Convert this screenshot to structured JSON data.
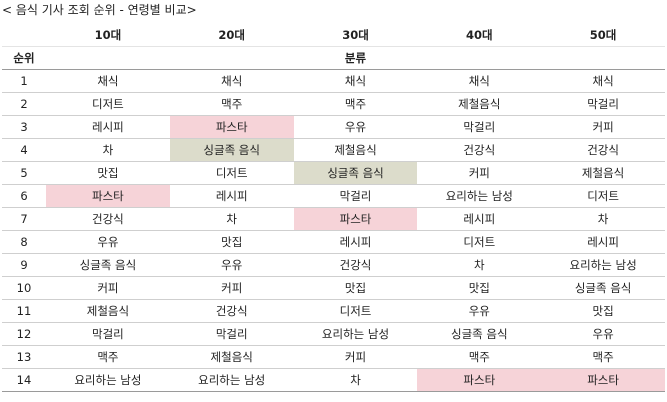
{
  "title": "< 음식 기사 조회 순위 - 연령별 비교>",
  "chart_data": {
    "type": "table",
    "rank_header": "순위",
    "category_header": "분류",
    "columns": [
      "10대",
      "20대",
      "30대",
      "40대",
      "50대"
    ],
    "ranks": [
      "1",
      "2",
      "3",
      "4",
      "5",
      "6",
      "7",
      "8",
      "9",
      "10",
      "11",
      "12",
      "13",
      "14"
    ],
    "rows": [
      [
        "채식",
        "채식",
        "채식",
        "채식",
        "채식"
      ],
      [
        "디저트",
        "맥주",
        "맥주",
        "제철음식",
        "막걸리"
      ],
      [
        "레시피",
        "파스타",
        "우유",
        "막걸리",
        "커피"
      ],
      [
        "차",
        "싱글족 음식",
        "제철음식",
        "건강식",
        "건강식"
      ],
      [
        "맛집",
        "디저트",
        "싱글족 음식",
        "커피",
        "제철음식"
      ],
      [
        "파스타",
        "레시피",
        "막걸리",
        "요리하는 남성",
        "디저트"
      ],
      [
        "건강식",
        "차",
        "파스타",
        "레시피",
        "차"
      ],
      [
        "우유",
        "맛집",
        "레시피",
        "디저트",
        "레시피"
      ],
      [
        "싱글족 음식",
        "우유",
        "건강식",
        "차",
        "요리하는 남성"
      ],
      [
        "커피",
        "커피",
        "맛집",
        "맛집",
        "싱글족 음식"
      ],
      [
        "제철음식",
        "건강식",
        "디저트",
        "우유",
        "맛집"
      ],
      [
        "막걸리",
        "막걸리",
        "요리하는 남성",
        "싱글족 음식",
        "우유"
      ],
      [
        "맥주",
        "제철음식",
        "커피",
        "맥주",
        "맥주"
      ],
      [
        "요리하는 남성",
        "요리하는 남성",
        "차",
        "파스타",
        "파스타"
      ]
    ],
    "highlights": [
      {
        "row": 5,
        "col": 0,
        "color": "#f6d3d8"
      },
      {
        "row": 2,
        "col": 1,
        "color": "#f6d3d8"
      },
      {
        "row": 3,
        "col": 1,
        "color": "#dcdccb"
      },
      {
        "row": 4,
        "col": 2,
        "color": "#dcdccb"
      },
      {
        "row": 6,
        "col": 2,
        "color": "#f6d3d8"
      },
      {
        "row": 13,
        "col": 3,
        "color": "#f6d3d8"
      },
      {
        "row": 13,
        "col": 4,
        "color": "#f6d3d8"
      }
    ]
  }
}
